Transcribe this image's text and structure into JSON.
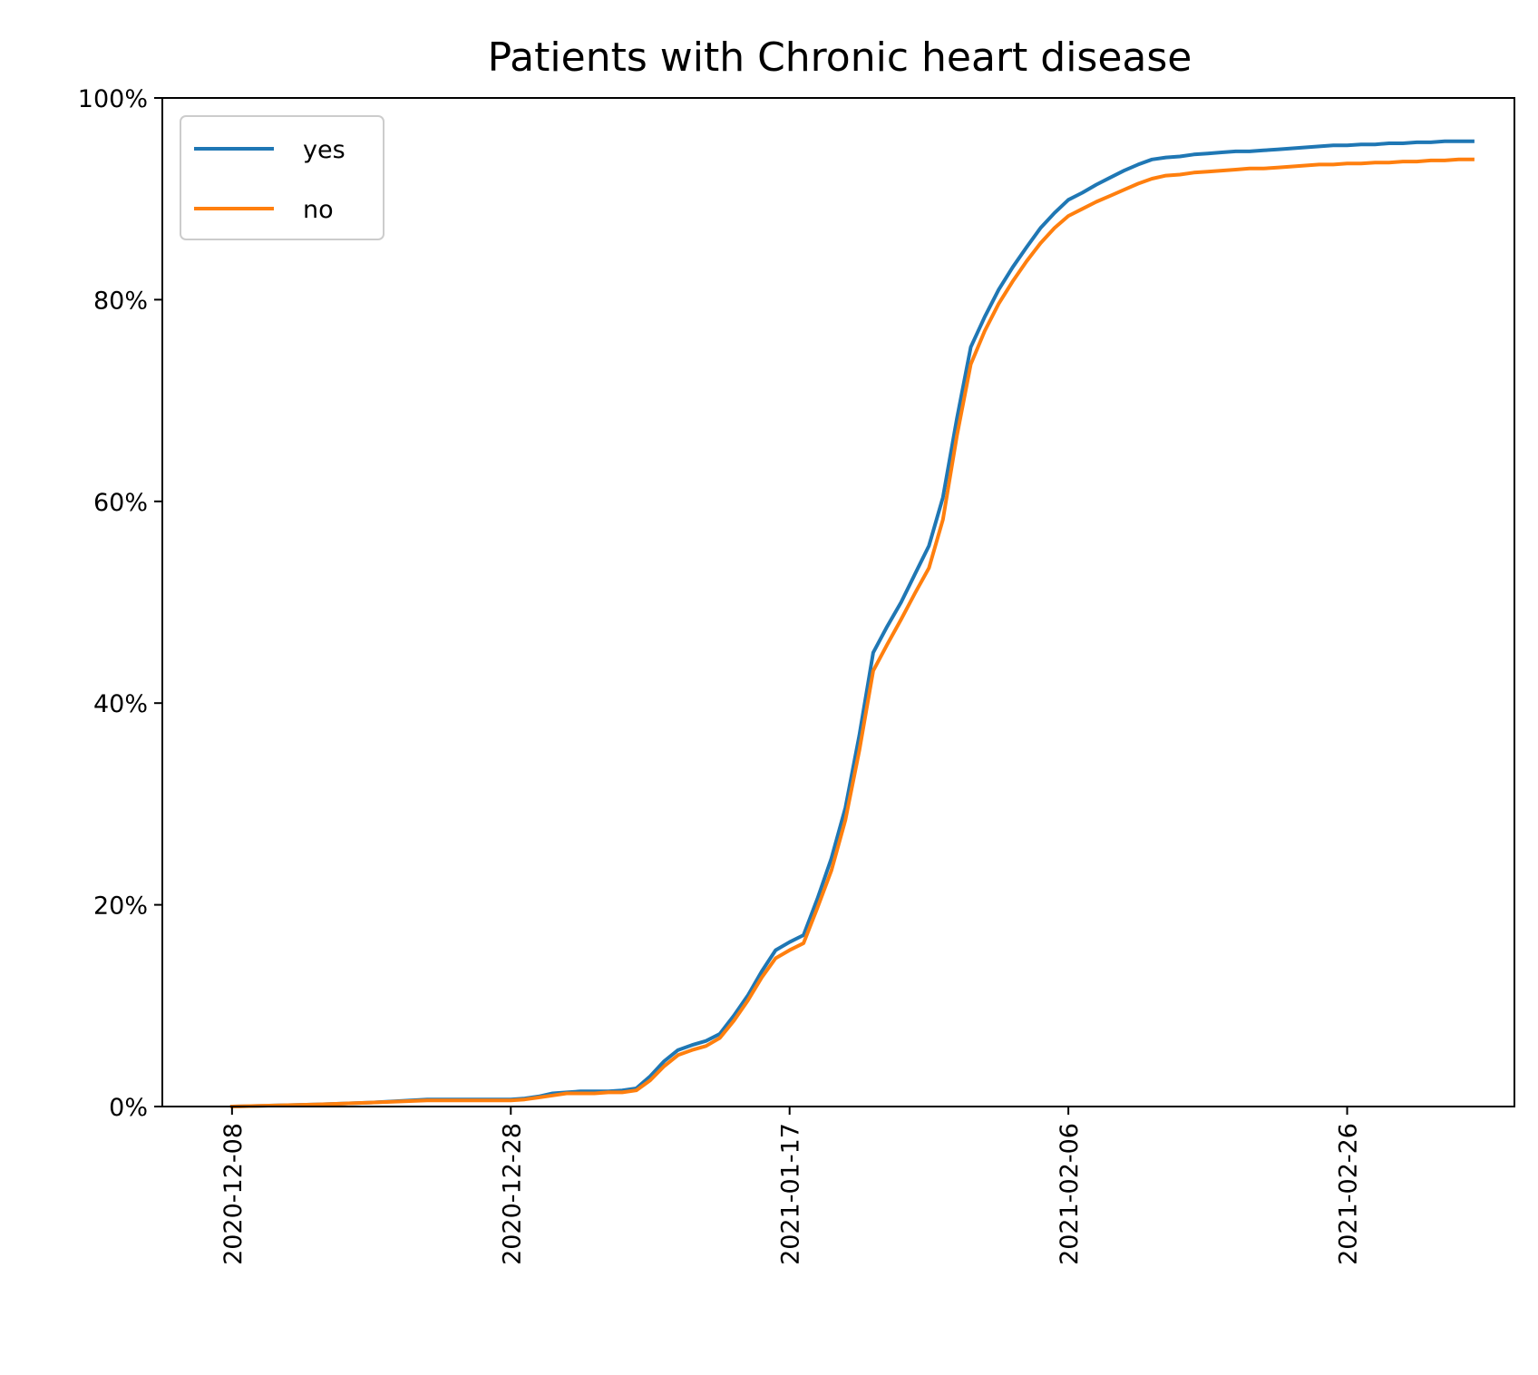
{
  "chart_data": {
    "type": "line",
    "title": "Patients with Chronic heart disease",
    "xlabel": "",
    "ylabel": "",
    "x_start": "2020-12-08",
    "x_tick_labels": [
      "2020-12-08",
      "2020-12-28",
      "2021-01-17",
      "2021-02-06",
      "2021-02-26"
    ],
    "y_tick_labels": [
      "0%",
      "20%",
      "40%",
      "60%",
      "80%",
      "100%"
    ],
    "xlim": [
      "2020-12-03",
      "2021-03-10"
    ],
    "ylim": [
      0,
      100
    ],
    "grid": false,
    "legend_position": "upper left",
    "x": [
      "2020-12-08",
      "2020-12-14",
      "2020-12-18",
      "2020-12-22",
      "2020-12-23",
      "2020-12-28",
      "2020-12-29",
      "2020-12-30",
      "2020-12-31",
      "2021-01-01",
      "2021-01-02",
      "2021-01-03",
      "2021-01-04",
      "2021-01-05",
      "2021-01-06",
      "2021-01-07",
      "2021-01-08",
      "2021-01-09",
      "2021-01-10",
      "2021-01-11",
      "2021-01-12",
      "2021-01-13",
      "2021-01-14",
      "2021-01-15",
      "2021-01-16",
      "2021-01-17",
      "2021-01-18",
      "2021-01-19",
      "2021-01-20",
      "2021-01-21",
      "2021-01-22",
      "2021-01-23",
      "2021-01-24",
      "2021-01-25",
      "2021-01-26",
      "2021-01-27",
      "2021-01-28",
      "2021-01-29",
      "2021-01-30",
      "2021-01-31",
      "2021-02-01",
      "2021-02-02",
      "2021-02-03",
      "2021-02-04",
      "2021-02-05",
      "2021-02-06",
      "2021-02-07",
      "2021-02-08",
      "2021-02-09",
      "2021-02-10",
      "2021-02-11",
      "2021-02-12",
      "2021-02-13",
      "2021-02-14",
      "2021-02-15",
      "2021-02-16",
      "2021-02-17",
      "2021-02-18",
      "2021-02-19",
      "2021-02-20",
      "2021-02-21",
      "2021-02-22",
      "2021-02-23",
      "2021-02-24",
      "2021-02-25",
      "2021-02-26",
      "2021-02-27",
      "2021-02-28",
      "2021-03-01",
      "2021-03-02",
      "2021-03-03",
      "2021-03-04",
      "2021-03-05",
      "2021-03-06",
      "2021-03-07"
    ],
    "series": [
      {
        "name": "yes",
        "color": "#1f77b4",
        "values": [
          0,
          0.2,
          0.4,
          0.7,
          0.7,
          0.7,
          0.8,
          1.0,
          1.3,
          1.4,
          1.5,
          1.5,
          1.5,
          1.6,
          1.8,
          3.0,
          4.5,
          5.6,
          6.1,
          6.5,
          7.2,
          9.0,
          11.0,
          13.4,
          15.5,
          16.3,
          17.0,
          20.6,
          24.6,
          29.6,
          36.8,
          45.0,
          47.6,
          50.0,
          52.8,
          55.6,
          60.4,
          68.2,
          75.3,
          78.3,
          81.0,
          83.2,
          85.2,
          87.1,
          88.6,
          89.9,
          90.6,
          91.4,
          92.1,
          92.8,
          93.4,
          93.9,
          94.1,
          94.2,
          94.4,
          94.5,
          94.6,
          94.7,
          94.7,
          94.8,
          94.9,
          95.0,
          95.1,
          95.2,
          95.3,
          95.3,
          95.4,
          95.4,
          95.5,
          95.5,
          95.6,
          95.6,
          95.7,
          95.7,
          95.7
        ]
      },
      {
        "name": "no",
        "color": "#ff7f0e",
        "values": [
          0,
          0.2,
          0.4,
          0.6,
          0.6,
          0.6,
          0.7,
          0.9,
          1.1,
          1.3,
          1.3,
          1.3,
          1.4,
          1.4,
          1.6,
          2.6,
          4.0,
          5.1,
          5.6,
          6.0,
          6.8,
          8.5,
          10.5,
          12.8,
          14.7,
          15.5,
          16.2,
          19.7,
          23.4,
          28.4,
          35.3,
          43.2,
          45.8,
          48.3,
          50.9,
          53.4,
          58.2,
          66.5,
          73.6,
          76.9,
          79.6,
          81.8,
          83.8,
          85.6,
          87.1,
          88.3,
          89.0,
          89.7,
          90.3,
          90.9,
          91.5,
          92.0,
          92.3,
          92.4,
          92.6,
          92.7,
          92.8,
          92.9,
          93.0,
          93.0,
          93.1,
          93.2,
          93.3,
          93.4,
          93.4,
          93.5,
          93.5,
          93.6,
          93.6,
          93.7,
          93.7,
          93.8,
          93.8,
          93.9,
          93.9
        ]
      }
    ]
  }
}
